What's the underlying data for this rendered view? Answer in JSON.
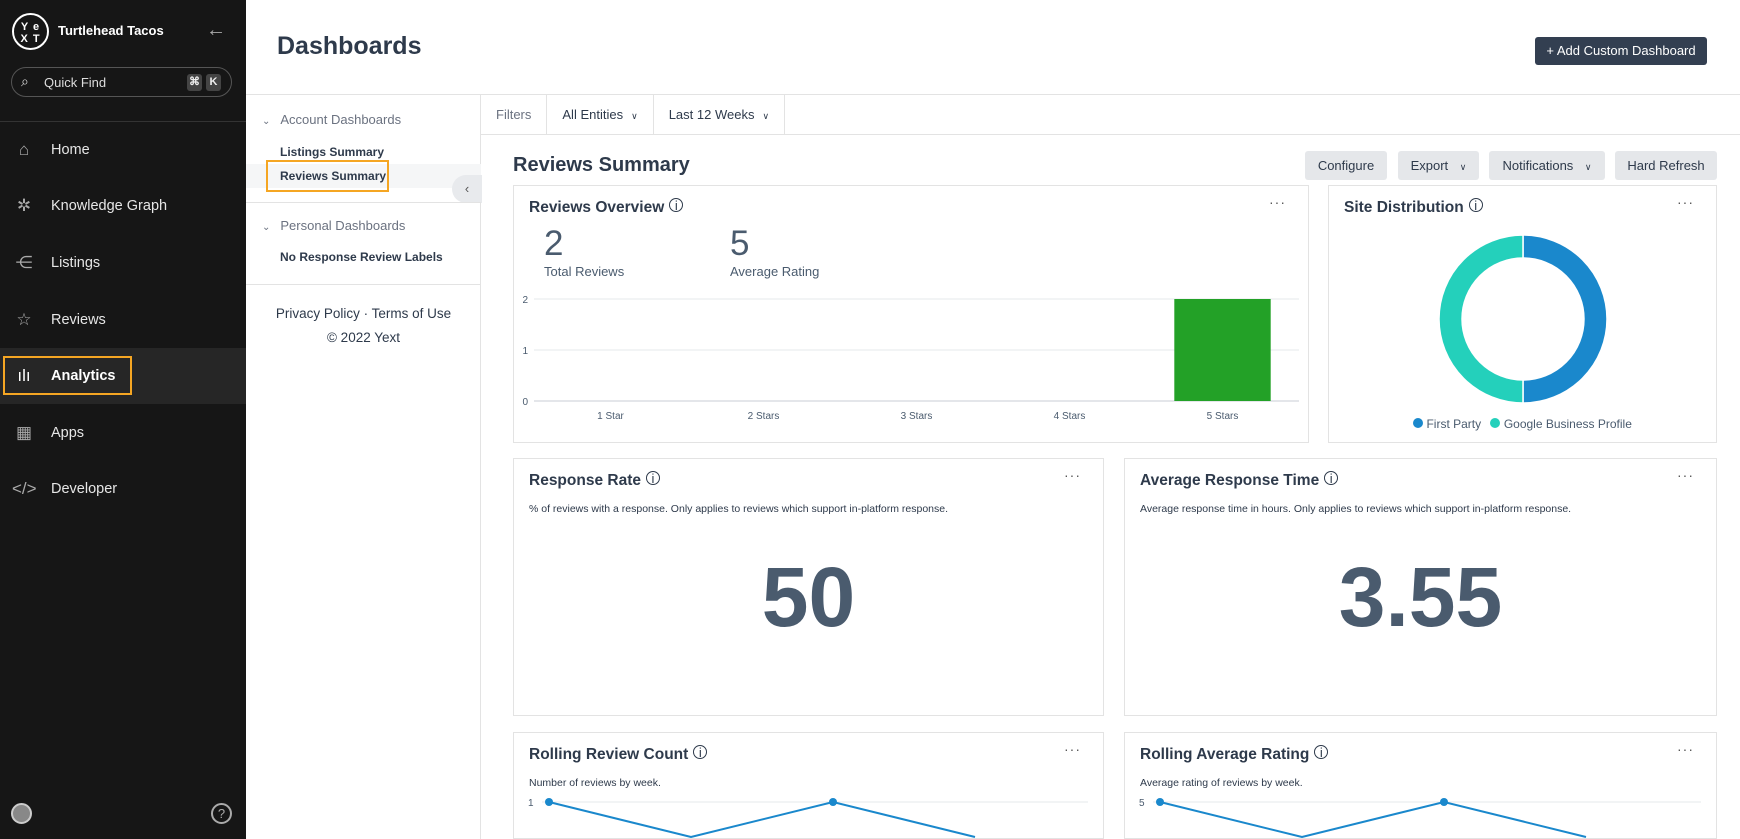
{
  "sidebar": {
    "logo": "yext",
    "org": "Turtlehead Tacos",
    "quick_find": "Quick Find",
    "kbd": [
      "⌘",
      "K"
    ],
    "items": [
      {
        "label": "Home",
        "icon": "home-icon"
      },
      {
        "label": "Knowledge Graph",
        "icon": "knowledge-graph-icon"
      },
      {
        "label": "Listings",
        "icon": "listings-icon"
      },
      {
        "label": "Reviews",
        "icon": "reviews-icon"
      },
      {
        "label": "Analytics",
        "icon": "analytics-icon",
        "active": true
      },
      {
        "label": "Apps",
        "icon": "apps-icon"
      },
      {
        "label": "Developer",
        "icon": "developer-icon"
      }
    ]
  },
  "header": {
    "title": "Dashboards",
    "add_button": "+ Add Custom Dashboard"
  },
  "dashboards": {
    "account_group": "Account Dashboards",
    "account_items": [
      "Listings Summary",
      "Reviews Summary"
    ],
    "selected": "Reviews Summary",
    "personal_group": "Personal Dashboards",
    "personal_items": [
      "No Response Review Labels"
    ],
    "privacy": "Privacy Policy · Terms of Use",
    "copyright": "© 2022 Yext"
  },
  "filters": {
    "label": "Filters",
    "entities": "All Entities",
    "range": "Last 12 Weeks"
  },
  "summary": {
    "title": "Reviews Summary",
    "buttons": {
      "configure": "Configure",
      "export": "Export",
      "notifications": "Notifications",
      "refresh": "Hard Refresh"
    }
  },
  "cards": {
    "overview": {
      "title": "Reviews Overview",
      "total": "2",
      "total_label": "Total Reviews",
      "avg": "5",
      "avg_label": "Average Rating"
    },
    "site": {
      "title": "Site Distribution"
    },
    "response_rate": {
      "title": "Response Rate",
      "desc": "% of reviews with a response. Only applies to reviews which support in-platform response.",
      "value": "50"
    },
    "response_time": {
      "title": "Average Response Time",
      "desc": "Average response time in hours. Only applies to reviews which support in-platform response.",
      "value": "3.55"
    },
    "rolling_count": {
      "title": "Rolling Review Count",
      "desc": "Number of reviews by week."
    },
    "rolling_rating": {
      "title": "Rolling Average Rating",
      "desc": "Average rating of reviews by week."
    }
  },
  "colors": {
    "bar": "#23a127",
    "first_party": "#1a88cc",
    "gbp": "#24d0bb",
    "line": "#1a88cc",
    "accent_highlight": "#f5a623"
  },
  "chart_data": [
    {
      "type": "bar",
      "categories": [
        "1 Star",
        "2 Stars",
        "3 Stars",
        "4 Stars",
        "5 Stars"
      ],
      "values": [
        0,
        0,
        0,
        0,
        2
      ],
      "ylim": [
        0,
        2
      ],
      "yticks": [
        "0",
        "1",
        "2"
      ],
      "grid": true
    },
    {
      "type": "pie",
      "donut": true,
      "labels": [
        "First Party",
        "Google Business Profile"
      ],
      "values": [
        50,
        50
      ],
      "legend": "bottom"
    },
    {
      "type": "line",
      "ytick_top": "1",
      "values": [
        1,
        0,
        1,
        0
      ]
    },
    {
      "type": "line",
      "ytick_top": "5",
      "values": [
        5,
        0,
        5,
        0
      ]
    }
  ]
}
